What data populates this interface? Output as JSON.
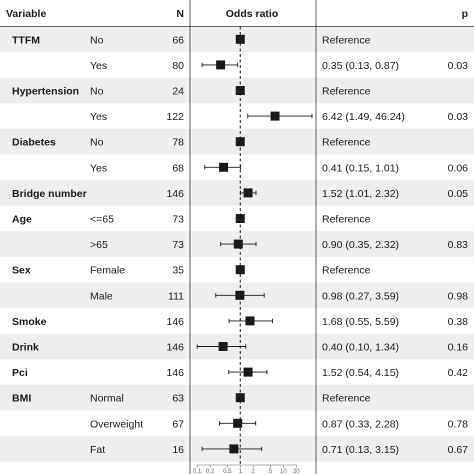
{
  "headers": {
    "variable": "Variable",
    "n": "N",
    "odds_ratio": "Odds ratio",
    "p": "p"
  },
  "colors": {
    "stripe": "#eeeeee",
    "marker": "#1a1a1a",
    "reference_line": "#1a1a1a",
    "text": "#1a1a1a"
  },
  "chart_data": {
    "type": "forest",
    "x_scale": "log",
    "reference_value": 1,
    "xlim": [
      0.08,
      46.24
    ],
    "x_ticks": [
      {
        "value": 0.1,
        "label": "0.1"
      },
      {
        "value": 0.2,
        "label": "0.2"
      },
      {
        "value": 0.5,
        "label": "0.5"
      },
      {
        "value": 1,
        "label": "1"
      },
      {
        "value": 2,
        "label": "2"
      },
      {
        "value": 5,
        "label": "5"
      },
      {
        "value": 10,
        "label": "10"
      },
      {
        "value": 20,
        "label": "20"
      }
    ],
    "rows": [
      {
        "variable": "TTFM",
        "level": "No",
        "n": "66",
        "or": 1,
        "lo": null,
        "hi": null,
        "label": "Reference",
        "p": ""
      },
      {
        "variable": "",
        "level": "Yes",
        "n": "80",
        "or": 0.35,
        "lo": 0.13,
        "hi": 0.87,
        "label": "0.35 (0.13, 0.87)",
        "p": "0.03"
      },
      {
        "variable": "Hypertension",
        "level": "No",
        "n": "24",
        "or": 1,
        "lo": null,
        "hi": null,
        "label": "Reference",
        "p": ""
      },
      {
        "variable": "",
        "level": "Yes",
        "n": "122",
        "or": 6.42,
        "lo": 1.49,
        "hi": 46.24,
        "label": "6.42 (1.49, 46.24)",
        "p": "0.03"
      },
      {
        "variable": "Diabetes",
        "level": "No",
        "n": "78",
        "or": 1,
        "lo": null,
        "hi": null,
        "label": "Reference",
        "p": ""
      },
      {
        "variable": "",
        "level": "Yes",
        "n": "68",
        "or": 0.41,
        "lo": 0.15,
        "hi": 1.01,
        "label": "0.41 (0.15, 1.01)",
        "p": "0.06"
      },
      {
        "variable": "Bridge number",
        "level": "",
        "n": "146",
        "or": 1.52,
        "lo": 1.01,
        "hi": 2.32,
        "label": "1.52 (1.01, 2.32)",
        "p": "0.05"
      },
      {
        "variable": "Age",
        "level": "<=65",
        "n": "73",
        "or": 1,
        "lo": null,
        "hi": null,
        "label": "Reference",
        "p": ""
      },
      {
        "variable": "",
        "level": ">65",
        "n": "73",
        "or": 0.9,
        "lo": 0.35,
        "hi": 2.32,
        "label": "0.90 (0.35, 2.32)",
        "p": "0.83"
      },
      {
        "variable": "Sex",
        "level": "Female",
        "n": "35",
        "or": 1,
        "lo": null,
        "hi": null,
        "label": "Reference",
        "p": ""
      },
      {
        "variable": "",
        "level": "Male",
        "n": "111",
        "or": 0.98,
        "lo": 0.27,
        "hi": 3.59,
        "label": "0.98 (0.27, 3.59)",
        "p": "0.98"
      },
      {
        "variable": "Smoke",
        "level": "",
        "n": "146",
        "or": 1.68,
        "lo": 0.55,
        "hi": 5.59,
        "label": "1.68 (0.55, 5.59)",
        "p": "0.38"
      },
      {
        "variable": "Drink",
        "level": "",
        "n": "146",
        "or": 0.4,
        "lo": 0.1,
        "hi": 1.34,
        "label": "0.40 (0.10, 1.34)",
        "p": "0.16"
      },
      {
        "variable": "Pci",
        "level": "",
        "n": "146",
        "or": 1.52,
        "lo": 0.54,
        "hi": 4.15,
        "label": "1.52 (0.54, 4.15)",
        "p": "0.42"
      },
      {
        "variable": "BMI",
        "level": "Normal",
        "n": "63",
        "or": 1,
        "lo": null,
        "hi": null,
        "label": "Reference",
        "p": ""
      },
      {
        "variable": "",
        "level": "Overweight",
        "n": "67",
        "or": 0.87,
        "lo": 0.33,
        "hi": 2.28,
        "label": "0.87 (0.33, 2.28)",
        "p": "0.78"
      },
      {
        "variable": "",
        "level": "Fat",
        "n": "16",
        "or": 0.71,
        "lo": 0.13,
        "hi": 3.15,
        "label": "0.71 (0.13, 3.15)",
        "p": "0.67"
      }
    ]
  }
}
